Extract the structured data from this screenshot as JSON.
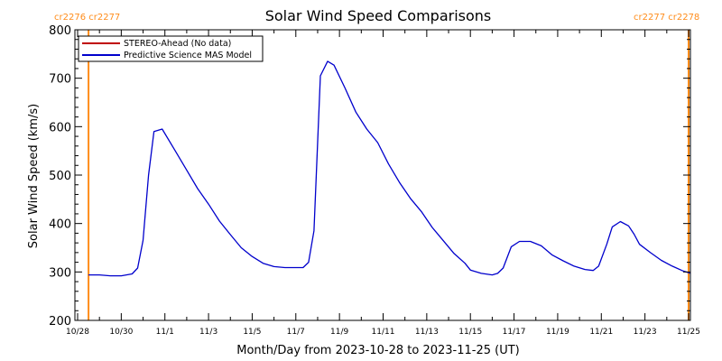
{
  "chart_data": {
    "type": "line",
    "title": "Solar Wind Speed Comparisons",
    "xlabel": "Month/Day from 2023-10-28 to 2023-11-25 (UT)",
    "ylabel": "Solar Wind Speed (km/s)",
    "xlim": [
      "2023-10-28",
      "2023-11-25"
    ],
    "ylim": [
      200,
      800
    ],
    "y_ticks": [
      200,
      300,
      400,
      500,
      600,
      700,
      800
    ],
    "x_ticks": [
      {
        "date": "2023-10-28",
        "label": "10/28"
      },
      {
        "date": "2023-10-30",
        "label": "10/30"
      },
      {
        "date": "2023-11-01",
        "label": "11/1"
      },
      {
        "date": "2023-11-03",
        "label": "11/3"
      },
      {
        "date": "2023-11-05",
        "label": "11/5"
      },
      {
        "date": "2023-11-07",
        "label": "11/7"
      },
      {
        "date": "2023-11-09",
        "label": "11/9"
      },
      {
        "date": "2023-11-11",
        "label": "11/11"
      },
      {
        "date": "2023-11-13",
        "label": "11/13"
      },
      {
        "date": "2023-11-15",
        "label": "11/15"
      },
      {
        "date": "2023-11-17",
        "label": "11/17"
      },
      {
        "date": "2023-11-19",
        "label": "11/19"
      },
      {
        "date": "2023-11-21",
        "label": "11/21"
      },
      {
        "date": "2023-11-23",
        "label": "11/23"
      },
      {
        "date": "2023-11-25",
        "label": "11/25"
      }
    ],
    "carrington_markers": [
      {
        "date": "2023-10-28 12:00",
        "labels": [
          "cr2276",
          "cr2277"
        ],
        "color": "#ff8c1a"
      },
      {
        "date": "2023-11-25 00:00",
        "labels": [
          "cr2277",
          "cr2278"
        ],
        "color": "#ff8c1a"
      }
    ],
    "legend": {
      "position": "top-left",
      "entries": [
        {
          "label": "STEREO-Ahead (No data)",
          "color": "#c00000"
        },
        {
          "label": "Predictive Science MAS Model",
          "color": "#0000cc"
        }
      ]
    },
    "series": [
      {
        "name": "Predictive Science MAS Model",
        "color": "#0000cc",
        "points": [
          [
            "2023-10-28 12:00",
            294
          ],
          [
            "2023-10-29 00:00",
            294
          ],
          [
            "2023-10-29 12:00",
            292
          ],
          [
            "2023-10-30 00:00",
            292
          ],
          [
            "2023-10-30 12:00",
            296
          ],
          [
            "2023-10-30 18:00",
            308
          ],
          [
            "2023-10-31 00:00",
            365
          ],
          [
            "2023-10-31 06:00",
            500
          ],
          [
            "2023-10-31 12:00",
            590
          ],
          [
            "2023-10-31 21:00",
            595
          ],
          [
            "2023-11-01 12:00",
            548
          ],
          [
            "2023-11-02 00:00",
            510
          ],
          [
            "2023-11-02 12:00",
            472
          ],
          [
            "2023-11-03 00:00",
            440
          ],
          [
            "2023-11-03 12:00",
            405
          ],
          [
            "2023-11-04 00:00",
            377
          ],
          [
            "2023-11-04 12:00",
            350
          ],
          [
            "2023-11-05 00:00",
            332
          ],
          [
            "2023-11-05 12:00",
            318
          ],
          [
            "2023-11-06 00:00",
            311
          ],
          [
            "2023-11-06 12:00",
            309
          ],
          [
            "2023-11-07 00:00",
            309
          ],
          [
            "2023-11-07 08:00",
            309
          ],
          [
            "2023-11-07 14:00",
            320
          ],
          [
            "2023-11-07 20:00",
            385
          ],
          [
            "2023-11-08 03:00",
            705
          ],
          [
            "2023-11-08 11:00",
            735
          ],
          [
            "2023-11-08 18:00",
            727
          ],
          [
            "2023-11-09 06:00",
            680
          ],
          [
            "2023-11-09 18:00",
            630
          ],
          [
            "2023-11-10 06:00",
            595
          ],
          [
            "2023-11-10 18:00",
            567
          ],
          [
            "2023-11-11 06:00",
            523
          ],
          [
            "2023-11-11 18:00",
            485
          ],
          [
            "2023-11-12 06:00",
            452
          ],
          [
            "2023-11-12 18:00",
            425
          ],
          [
            "2023-11-13 06:00",
            392
          ],
          [
            "2023-11-13 18:00",
            365
          ],
          [
            "2023-11-14 06:00",
            338
          ],
          [
            "2023-11-14 18:00",
            318
          ],
          [
            "2023-11-15 00:00",
            304
          ],
          [
            "2023-11-15 12:00",
            297
          ],
          [
            "2023-11-16 00:00",
            294
          ],
          [
            "2023-11-16 06:00",
            297
          ],
          [
            "2023-11-16 12:00",
            308
          ],
          [
            "2023-11-16 21:00",
            352
          ],
          [
            "2023-11-17 06:00",
            363
          ],
          [
            "2023-11-17 18:00",
            363
          ],
          [
            "2023-11-18 06:00",
            354
          ],
          [
            "2023-11-18 18:00",
            335
          ],
          [
            "2023-11-19 06:00",
            323
          ],
          [
            "2023-11-19 18:00",
            312
          ],
          [
            "2023-11-20 06:00",
            305
          ],
          [
            "2023-11-20 15:00",
            303
          ],
          [
            "2023-11-20 21:00",
            312
          ],
          [
            "2023-11-21 06:00",
            357
          ],
          [
            "2023-11-21 12:00",
            393
          ],
          [
            "2023-11-21 21:00",
            404
          ],
          [
            "2023-11-22 06:00",
            395
          ],
          [
            "2023-11-22 12:00",
            378
          ],
          [
            "2023-11-22 18:00",
            357
          ],
          [
            "2023-11-23 06:00",
            340
          ],
          [
            "2023-11-23 18:00",
            324
          ],
          [
            "2023-11-24 06:00",
            312
          ],
          [
            "2023-11-24 18:00",
            302
          ],
          [
            "2023-11-25 06:00",
            295
          ],
          [
            "2023-11-25 18:00",
            289
          ],
          [
            "2023-11-26 06:00",
            288
          ],
          [
            "2023-11-26 12:00",
            288
          ]
        ]
      }
    ]
  }
}
